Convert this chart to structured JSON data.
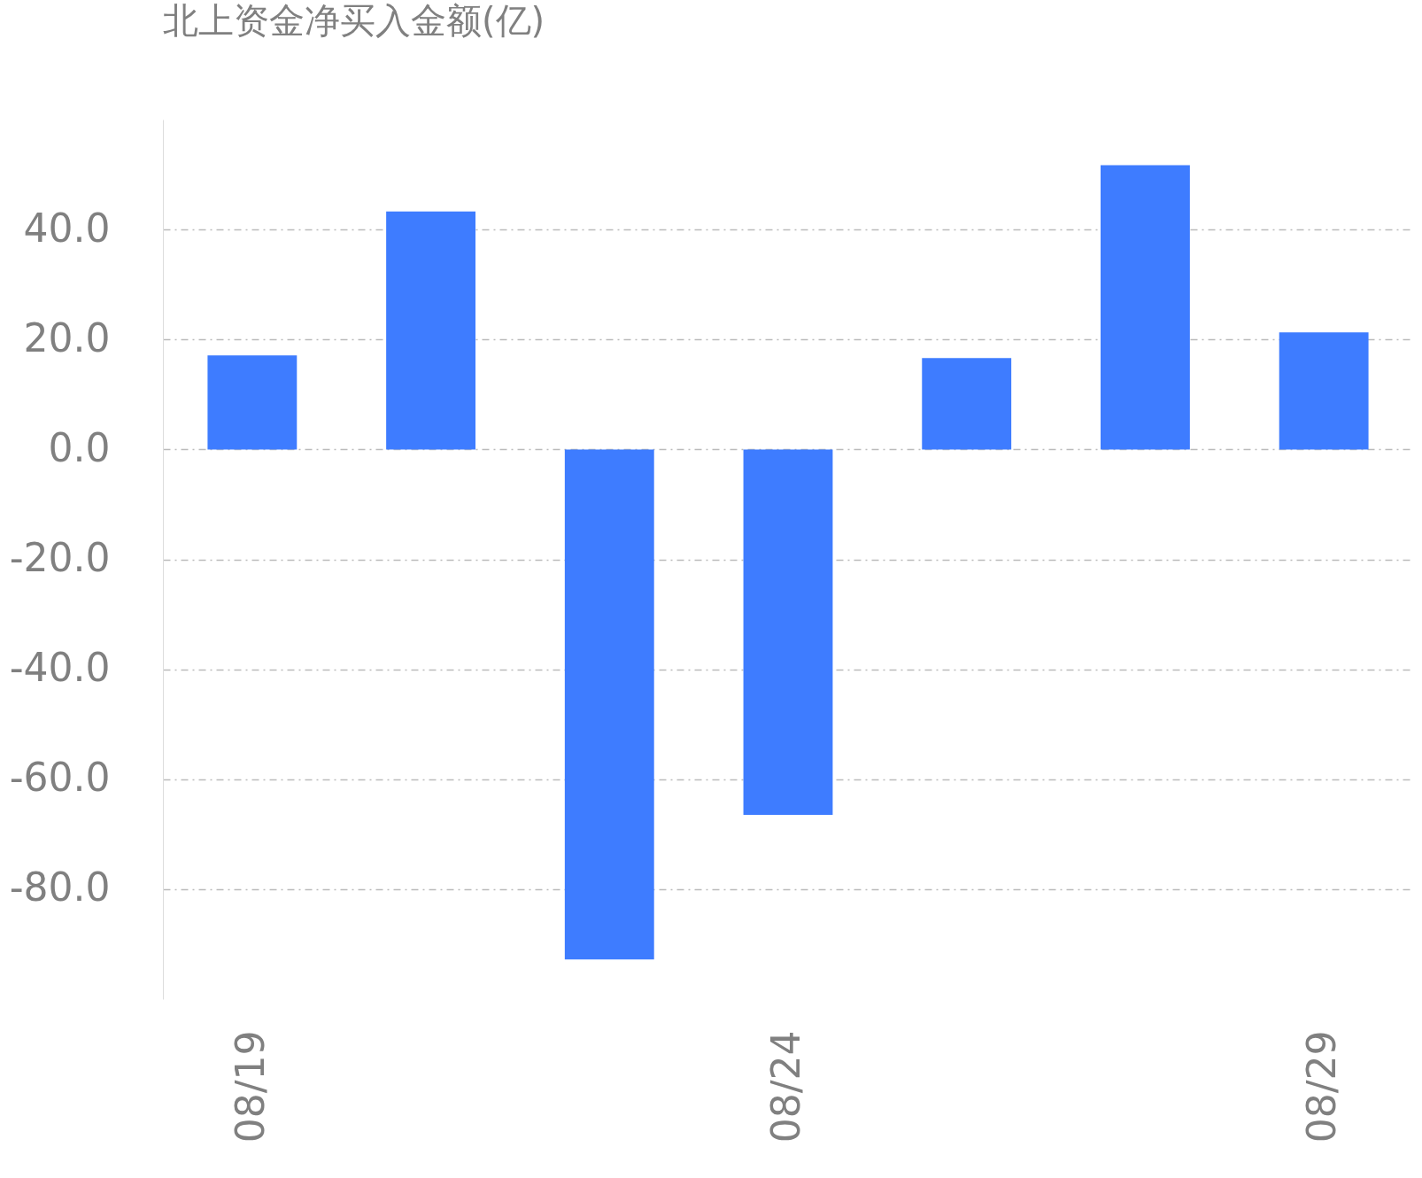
{
  "chart_data": {
    "type": "bar",
    "title": "北上资金净买入金额(亿)",
    "categories": [
      "08/19",
      null,
      null,
      "08/24",
      null,
      null,
      "08/29"
    ],
    "values": [
      17.1,
      43.3,
      -92.8,
      -66.5,
      16.6,
      51.7,
      21.3
    ],
    "color": "#3e7cff",
    "ylim": [
      -100,
      60
    ],
    "yticks": [
      {
        "value": -80,
        "label": "-80.0"
      },
      {
        "value": -60,
        "label": "-60.0"
      },
      {
        "value": -40,
        "label": "-40.0"
      },
      {
        "value": -20,
        "label": "-20.0"
      },
      {
        "value": 0,
        "label": "0.0"
      },
      {
        "value": 20,
        "label": "20.0"
      },
      {
        "value": 40,
        "label": "40.0"
      }
    ],
    "grid": "y"
  }
}
